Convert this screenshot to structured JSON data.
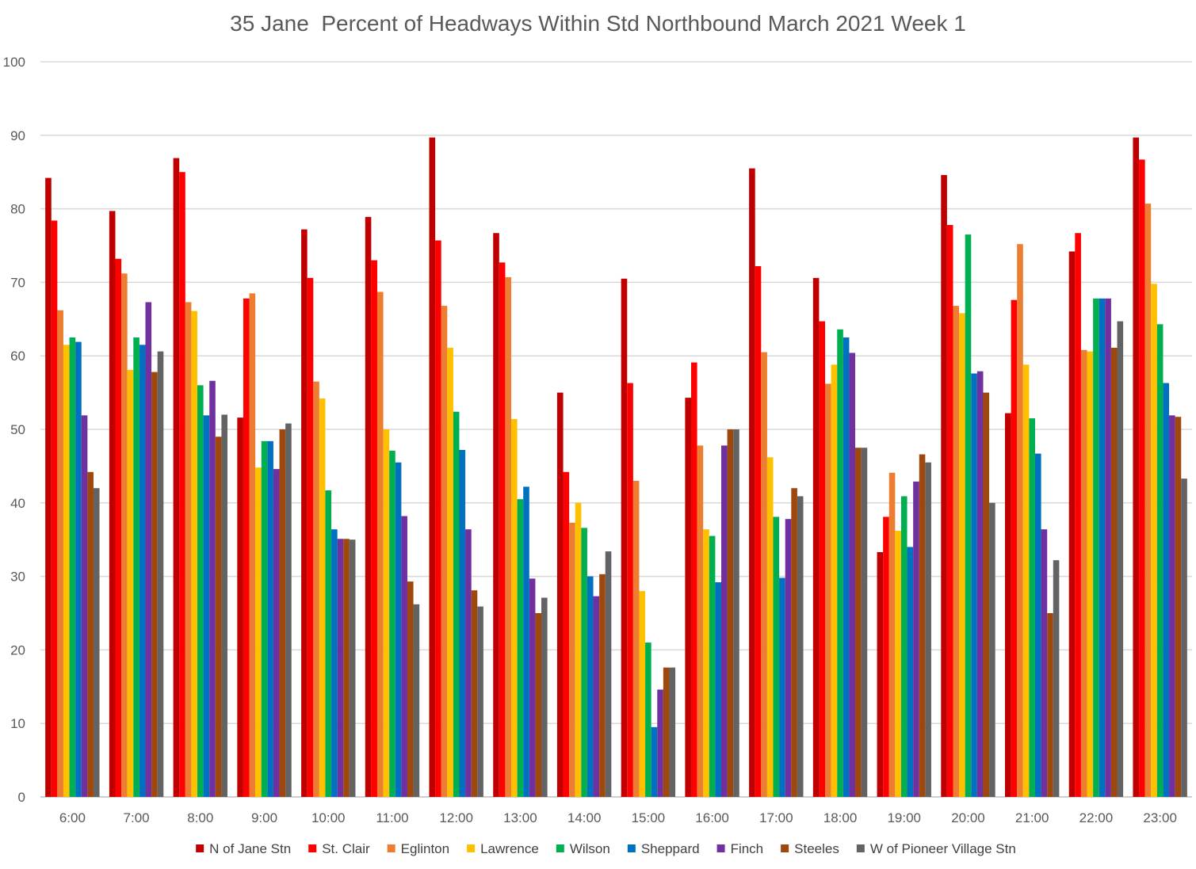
{
  "chart_data": {
    "type": "bar",
    "title": "35 Jane  Percent of Headways Within Std Northbound March 2021 Week 1",
    "ylim": [
      0,
      100
    ],
    "yticks": [
      0,
      10,
      20,
      30,
      40,
      50,
      60,
      70,
      80,
      90,
      100
    ],
    "grid": true,
    "legend_position": "bottom",
    "categories": [
      "6:00",
      "7:00",
      "8:00",
      "9:00",
      "10:00",
      "11:00",
      "12:00",
      "13:00",
      "14:00",
      "15:00",
      "16:00",
      "17:00",
      "18:00",
      "19:00",
      "20:00",
      "21:00",
      "22:00",
      "23:00"
    ],
    "series": [
      {
        "name": "N of Jane Stn",
        "color": "#C00000",
        "values": [
          84.2,
          79.7,
          86.9,
          51.6,
          77.2,
          78.9,
          89.7,
          76.7,
          55.0,
          70.5,
          54.3,
          85.5,
          70.6,
          33.3,
          84.6,
          52.2,
          74.2,
          89.7
        ]
      },
      {
        "name": "St. Clair",
        "color": "#FF0000",
        "values": [
          78.4,
          73.2,
          85.0,
          67.8,
          70.6,
          73.0,
          75.7,
          72.7,
          44.2,
          56.3,
          59.1,
          72.2,
          64.7,
          38.1,
          77.8,
          67.6,
          76.7,
          86.7
        ]
      },
      {
        "name": "Eglinton",
        "color": "#ED7D31",
        "values": [
          66.2,
          71.2,
          67.3,
          68.5,
          56.5,
          68.7,
          66.8,
          70.7,
          37.3,
          43.0,
          47.8,
          60.5,
          56.2,
          44.1,
          66.8,
          75.2,
          60.8,
          80.7
        ]
      },
      {
        "name": "Lawrence",
        "color": "#FFC000",
        "values": [
          61.5,
          58.1,
          66.1,
          44.8,
          54.2,
          50.0,
          61.1,
          51.4,
          40.0,
          28.0,
          36.4,
          46.2,
          58.8,
          36.2,
          65.8,
          58.8,
          60.6,
          69.8
        ]
      },
      {
        "name": "Wilson",
        "color": "#00B050",
        "values": [
          62.5,
          62.5,
          56.0,
          48.4,
          41.7,
          47.1,
          52.4,
          40.5,
          36.6,
          21.0,
          35.5,
          38.1,
          63.6,
          40.9,
          76.5,
          51.5,
          67.8,
          64.3
        ]
      },
      {
        "name": "Sheppard",
        "color": "#0070C0",
        "values": [
          61.9,
          61.5,
          51.9,
          48.4,
          36.4,
          45.5,
          47.2,
          42.2,
          30.0,
          9.5,
          29.2,
          29.8,
          62.5,
          34.0,
          57.6,
          46.7,
          67.8,
          56.3
        ]
      },
      {
        "name": "Finch",
        "color": "#7030A0",
        "values": [
          51.9,
          67.3,
          56.6,
          44.6,
          35.1,
          38.2,
          36.4,
          29.7,
          27.3,
          14.6,
          47.8,
          37.8,
          60.4,
          42.9,
          57.9,
          36.4,
          67.8,
          51.9
        ]
      },
      {
        "name": "Steeles",
        "color": "#9E480E",
        "values": [
          44.2,
          57.8,
          49.0,
          50.0,
          35.1,
          29.3,
          28.1,
          25.0,
          30.3,
          17.6,
          50.0,
          42.0,
          47.5,
          46.6,
          55.0,
          25.0,
          61.1,
          51.7
        ]
      },
      {
        "name": "W of Pioneer Village Stn",
        "color": "#636363",
        "values": [
          42.0,
          60.6,
          52.0,
          50.8,
          35.0,
          26.2,
          25.9,
          27.1,
          33.4,
          17.6,
          50.0,
          40.9,
          47.5,
          45.5,
          40.0,
          32.2,
          64.7,
          43.3
        ]
      }
    ]
  }
}
